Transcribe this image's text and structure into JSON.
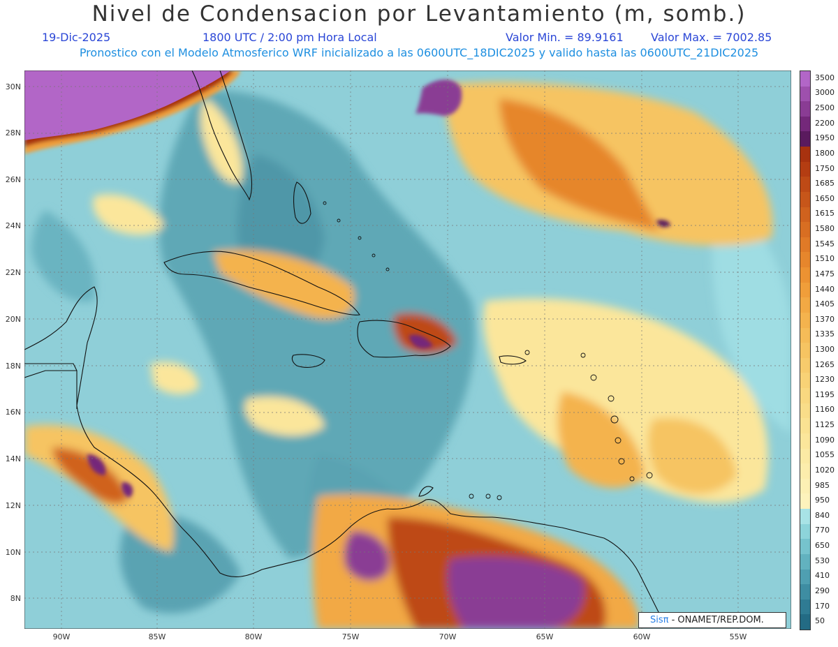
{
  "title": "Nivel de Condensacion por Levantamiento (m, somb.)",
  "date": "19-Dic-2025",
  "time": "1800 UTC / 2:00 pm Hora Local",
  "valmin": "Valor Min. = 89.9161",
  "valmax": "Valor Max. = 7002.85",
  "model": "Pronostico con el Modelo Atmosferico WRF inicializado a las 0600UTC_18DIC2025 y valido hasta las  0600UTC_21DIC2025",
  "lat_labels": [
    "30N",
    "28N",
    "26N",
    "24N",
    "22N",
    "20N",
    "18N",
    "16N",
    "14N",
    "12N",
    "10N",
    "8N"
  ],
  "lon_labels": [
    "90W",
    "85W",
    "80W",
    "75W",
    "70W",
    "65W",
    "60W",
    "55W"
  ],
  "colorbar": {
    "labels": [
      "3500",
      "3000",
      "2500",
      "2200",
      "1950",
      "1800",
      "1750",
      "1685",
      "1650",
      "1615",
      "1580",
      "1545",
      "1510",
      "1475",
      "1440",
      "1405",
      "1370",
      "1335",
      "1300",
      "1265",
      "1230",
      "1195",
      "1160",
      "1125",
      "1090",
      "1055",
      "1020",
      "985",
      "950",
      "840",
      "770",
      "650",
      "530",
      "410",
      "290",
      "170",
      "50"
    ],
    "colors": [
      "#b266c7",
      "#9e50ad",
      "#8a3c94",
      "#74287a",
      "#5a1a5e",
      "#a8320f",
      "#b43d12",
      "#be4a16",
      "#c7561a",
      "#d0621e",
      "#d86e22",
      "#e07a27",
      "#e6862c",
      "#ec9232",
      "#f09e3a",
      "#f2a944",
      "#f4b34e",
      "#f5bc58",
      "#f6c462",
      "#f7cb6c",
      "#f8d276",
      "#f9d880",
      "#f9dd89",
      "#fae292",
      "#fbe69b",
      "#fbeaa4",
      "#fcedac",
      "#fcf0b4",
      "#fdf3bc",
      "#a8e3e6",
      "#8dd4da",
      "#76c3cd",
      "#62b2bf",
      "#4f9fb1",
      "#3e8da2",
      "#2f7b93",
      "#236b84"
    ]
  },
  "credit": {
    "sis": "Sisπ",
    "org": "- ONAMET/REP.DOM."
  }
}
